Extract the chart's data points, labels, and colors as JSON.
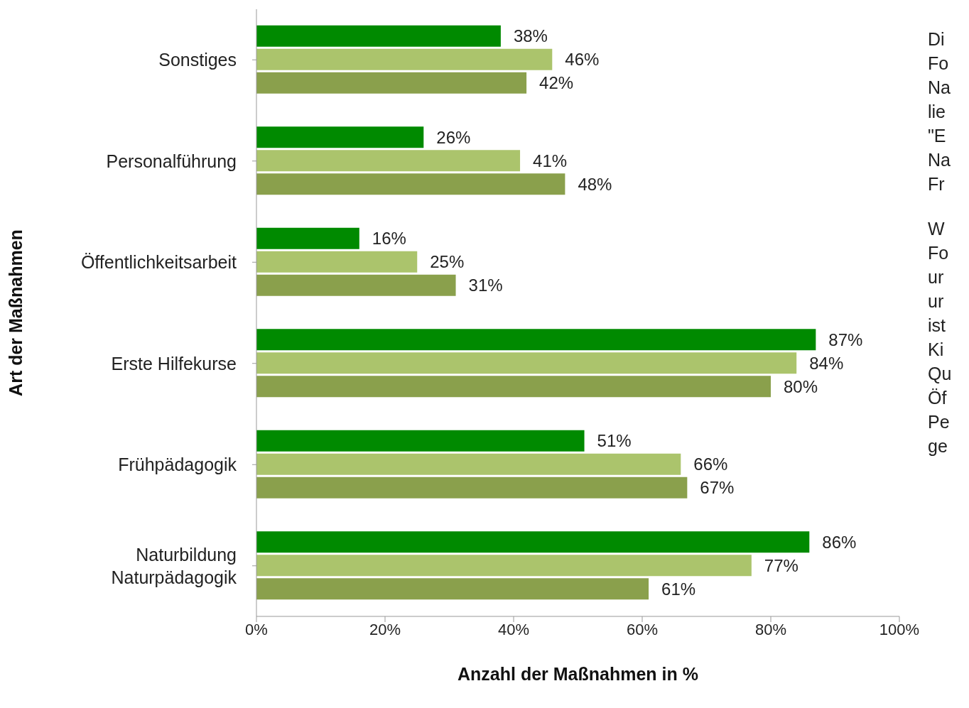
{
  "chart_data": {
    "type": "bar",
    "orientation": "horizontal",
    "xlabel": "Anzahl der Maßnahmen in %",
    "ylabel": "Art der Maßnahmen",
    "categories": [
      "Sonstiges",
      "Personalführung",
      "Öffentlichkeitsarbeit",
      "Erste Hilfekurse",
      "Frühpädagogik",
      "Naturbildung\nNaturpädagogik"
    ],
    "series": [
      {
        "color": "#008a00",
        "values": [
          38,
          26,
          16,
          87,
          51,
          86
        ],
        "value_labels": [
          "38%",
          "26%",
          "16%",
          "87%",
          "51%",
          "86%"
        ]
      },
      {
        "color": "#abc46c",
        "values": [
          46,
          41,
          25,
          84,
          66,
          77
        ],
        "value_labels": [
          "46%",
          "41%",
          "25%",
          "84%",
          "66%",
          "77%"
        ]
      },
      {
        "color": "#8aa04c",
        "values": [
          42,
          48,
          31,
          80,
          67,
          61
        ],
        "value_labels": [
          "42%",
          "48%",
          "31%",
          "80%",
          "67%",
          "61%"
        ]
      }
    ],
    "xlim": [
      0,
      100
    ],
    "xticks": [
      {
        "value": 0,
        "label": "0%"
      },
      {
        "value": 20,
        "label": "20%"
      },
      {
        "value": 40,
        "label": "40%"
      },
      {
        "value": 60,
        "label": "60%"
      },
      {
        "value": 80,
        "label": "80%"
      },
      {
        "value": 100,
        "label": "100%"
      }
    ],
    "annotations": [
      "Di\nFo\nNa\nlie\n\"E\nNa\nFr",
      "W\nFo\nur\nur\nist\nKi\nQu\nÖf\nPe\nge"
    ]
  }
}
